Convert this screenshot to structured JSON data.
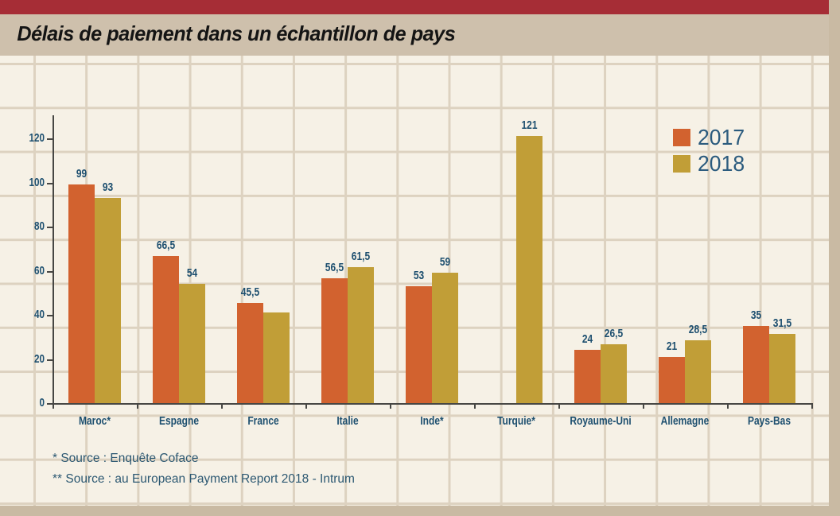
{
  "header": {
    "title": "Délais de paiement dans un échantillon de pays"
  },
  "chart_data": {
    "type": "bar",
    "title": "Délais de paiement dans un échantillon de pays",
    "categories": [
      "Maroc*",
      "Espagne",
      "France",
      "Italie",
      "Inde*",
      "Turquie*",
      "Royaume-Uni",
      "Allemagne",
      "Pays-Bas"
    ],
    "series": [
      {
        "name": "2017",
        "color": "#D2622F",
        "values": [
          99,
          66.5,
          45.5,
          56.5,
          53,
          null,
          24,
          21,
          35
        ],
        "labels": [
          "99",
          "66,5",
          "45,5",
          "56,5",
          "53",
          "",
          "24",
          "21",
          "35"
        ]
      },
      {
        "name": "2018",
        "color": "#C19E37",
        "values": [
          93,
          54,
          41,
          61.5,
          59,
          121,
          26.5,
          28.5,
          31.5
        ],
        "labels": [
          "93",
          "54",
          "",
          "61,5",
          "59",
          "121",
          "26,5",
          "28,5",
          "31,5"
        ]
      }
    ],
    "ylim": [
      0,
      130
    ],
    "yticks": [
      0,
      20,
      40,
      60,
      80,
      100,
      120
    ],
    "xlabel": "",
    "ylabel": "",
    "legend_position": "top-right",
    "grid": "decorative beige tile grid behind plot, not aligned to ticks"
  },
  "footnotes": [
    "* Source : Enquête Coface",
    "** Source : au European Payment Report 2018 - Intrum"
  ],
  "colors": {
    "top_bar": "#A62D36",
    "title_band": "#CEC0AC",
    "chart_bg": "#F6F1E6",
    "grid_line": "#DDD2C0",
    "outer": "#C9BAA3",
    "axis": "#474744",
    "text_blue": "#1D4F6F",
    "legend_text": "#2B5B7E",
    "footnote_text": "#2C5872",
    "title_text": "#141414"
  }
}
